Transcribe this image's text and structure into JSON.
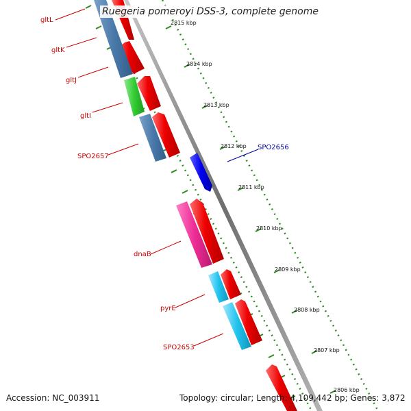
{
  "title": "Ruegeria pomeroyi DSS-3, complete genome",
  "footer": {
    "accession": "Accession: NC_003911",
    "summary": "Topology: circular; Length: 4,109,442 bp; Genes: 3,872"
  },
  "ticks": [
    "2815 kbp",
    "2814 kbp",
    "2813 kbp",
    "2812 kbp",
    "2811 kbp",
    "2810 kbp",
    "2809 kbp",
    "2808 kbp",
    "2807 kbp",
    "2806 kbp"
  ],
  "genes": {
    "gltL": "gltL",
    "gltK": "gltK",
    "gltJ": "gltJ",
    "gltI": "gltI",
    "SPO2657": "SPO2657",
    "dnaB": "dnaB",
    "pyrE": "pyrE",
    "SPO2653": "SPO2653",
    "SPO2656": "SPO2656"
  },
  "colors": {
    "backbone": "#7f7f7f",
    "tick_track": "#2e8b22",
    "reverse_label": "#cc0000",
    "forward_label": "#000099",
    "cds_forward": "#0000ee",
    "cds_reverse_strand": "#ee0000",
    "steelblue_feature": "#4a7aab",
    "green_feature": "#33cc33",
    "magenta_feature": "#ee2d96",
    "cyan_feature": "#22c3ee"
  }
}
